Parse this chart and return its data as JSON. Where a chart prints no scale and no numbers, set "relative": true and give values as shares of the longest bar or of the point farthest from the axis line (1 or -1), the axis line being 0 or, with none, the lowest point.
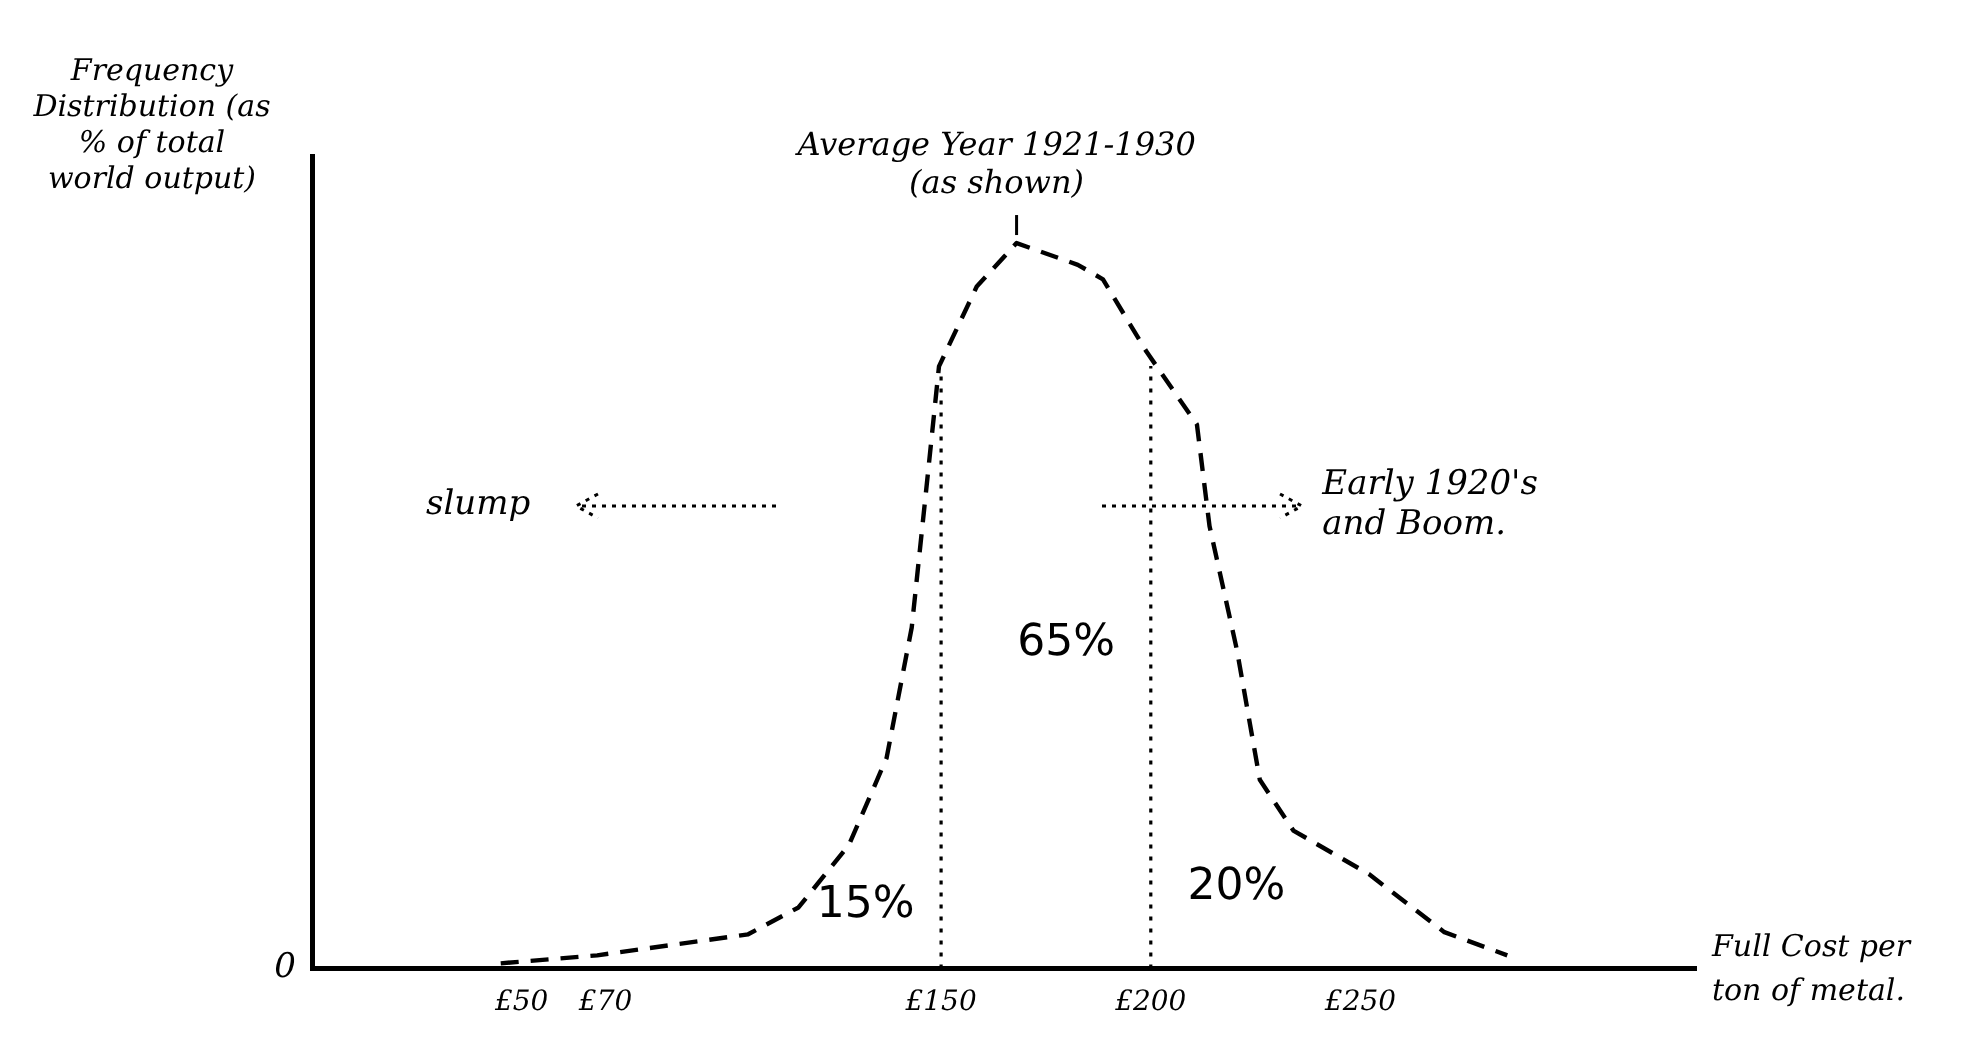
{
  "chart_data": {
    "type": "line",
    "relative": true,
    "xlabel": "Full Cost per ton of metal.",
    "ylabel": "Frequency Distribution (as % of total world output)",
    "xlim": [
      0,
      330
    ],
    "xticks": [
      {
        "value": 50,
        "label": "£50"
      },
      {
        "value": 70,
        "label": "£70"
      },
      {
        "value": 150,
        "label": "£150"
      },
      {
        "value": 200,
        "label": "£200"
      },
      {
        "value": 250,
        "label": "£250"
      }
    ],
    "series": [
      {
        "color": "#000000",
        "line_style": "dashed",
        "marker": "none",
        "x": [
          45,
          68,
          104,
          116,
          128,
          137,
          143,
          147,
          149.5,
          158.5,
          168,
          182.6,
          188.6,
          199,
          211,
          214,
          220.5,
          226,
          234,
          252,
          270,
          285
        ],
        "values": [
          0.007,
          0.018,
          0.047,
          0.084,
          0.17,
          0.29,
          0.47,
          0.69,
          0.83,
          0.94,
          1,
          0.97,
          0.95,
          0.85,
          0.75,
          0.61,
          0.44,
          0.26,
          0.19,
          0.13,
          0.05,
          0.018
        ]
      }
    ],
    "ref_lines": [
      {
        "axis": "x",
        "value": 150,
        "label": null,
        "line_style": "dotted"
      },
      {
        "axis": "x",
        "value": 200,
        "label": null,
        "line_style": "dotted"
      }
    ],
    "annotations": [
      {
        "text": "Average Year 1921-1930 (as shown)",
        "x": 168,
        "y": 1
      },
      "15%",
      "65%",
      "20%",
      "slump",
      "Early 1920's and Boom.",
      "0"
    ],
    "grid": false,
    "legend": false
  }
}
